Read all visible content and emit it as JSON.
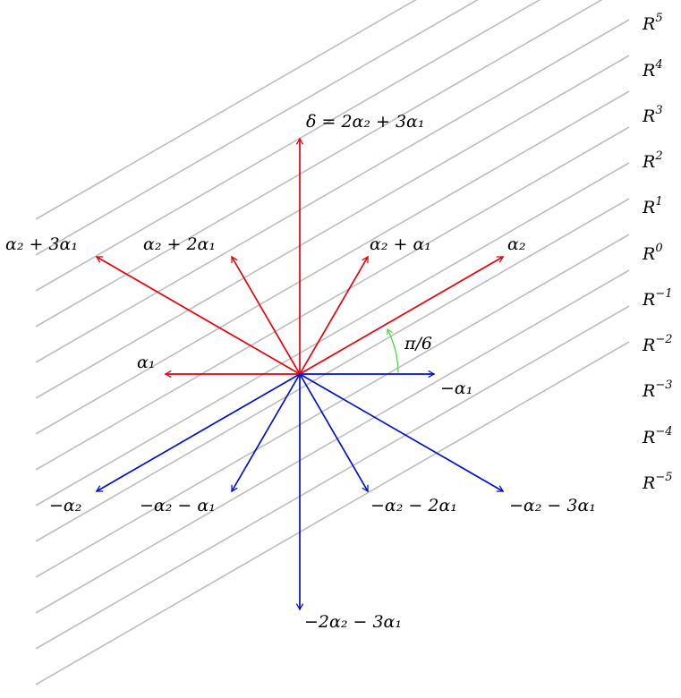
{
  "colors": {
    "positive_root": "#e8000b",
    "negative_root": "#0011cc",
    "angle": "#33dd33",
    "stripe": "#bdbdbd"
  },
  "stripes": [
    {
      "label": "R",
      "exp": "5"
    },
    {
      "label": "R",
      "exp": "4"
    },
    {
      "label": "R",
      "exp": "3"
    },
    {
      "label": "R",
      "exp": "2"
    },
    {
      "label": "R",
      "exp": "1"
    },
    {
      "label": "R",
      "exp": "0"
    },
    {
      "label": "R",
      "exp": "−1"
    },
    {
      "label": "R",
      "exp": "−2"
    },
    {
      "label": "R",
      "exp": "−3"
    },
    {
      "label": "R",
      "exp": "−4"
    },
    {
      "label": "R",
      "exp": "−5"
    },
    {
      "label": "",
      "exp": ""
    },
    {
      "label": "",
      "exp": ""
    },
    {
      "label": "",
      "exp": ""
    }
  ],
  "roots": {
    "alpha1": "α₁",
    "neg_alpha1": "−α₁",
    "alpha2": "α₂",
    "alpha2_plus_alpha1": "α₂ + α₁",
    "alpha2_plus_2alpha1": "α₂ + 2α₁",
    "alpha2_plus_3alpha1": "α₂ + 3α₁",
    "delta": "δ = 2α₂ + 3α₁",
    "neg_alpha2": "−α₂",
    "neg_alpha2_minus_alpha1": "−α₂ − α₁",
    "neg_alpha2_minus_2alpha1": "−α₂ − 2α₁",
    "neg_alpha2_minus_3alpha1": "−α₂ − 3α₁",
    "neg_delta": "−2α₂ − 3α₁"
  },
  "angle": {
    "label": "π/6"
  }
}
